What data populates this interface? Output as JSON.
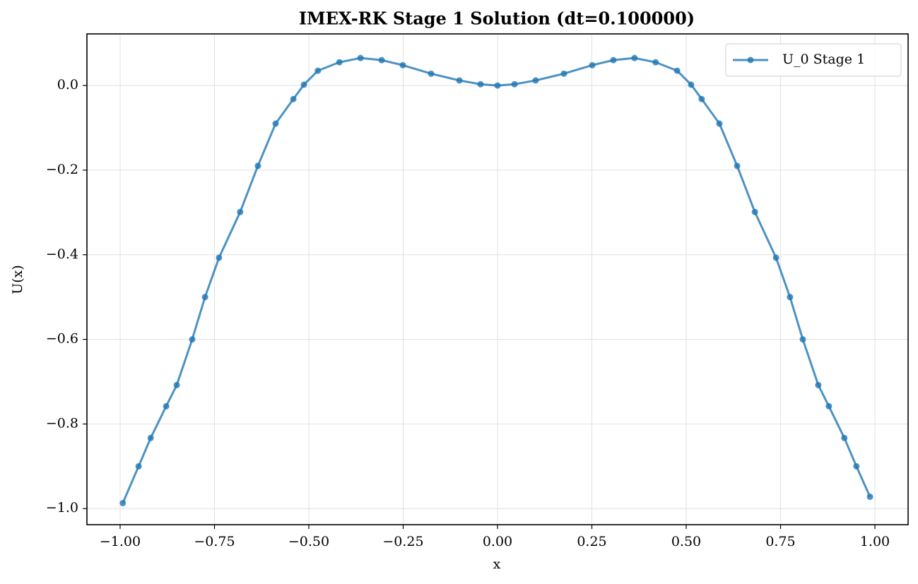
{
  "chart_data": {
    "type": "line",
    "title": "IMEX-RK Stage 1 Solution (dt=0.100000)",
    "xlabel": "x",
    "ylabel": "U(x)",
    "x": [
      -0.993,
      -0.951,
      -0.919,
      -0.878,
      -0.85,
      -0.809,
      -0.775,
      -0.738,
      -0.682,
      -0.635,
      -0.588,
      -0.541,
      -0.513,
      -0.476,
      -0.419,
      -0.363,
      -0.307,
      -0.251,
      -0.176,
      -0.101,
      -0.045,
      0,
      0.045,
      0.101,
      0.176,
      0.251,
      0.307,
      0.363,
      0.419,
      0.476,
      0.513,
      0.541,
      0.588,
      0.635,
      0.682,
      0.738,
      0.775,
      0.809,
      0.85,
      0.878,
      0.919,
      0.951,
      0.987
    ],
    "series": [
      {
        "name": "U_0 Stage 1",
        "color": "#1f77b4",
        "values": [
          -0.987,
          -0.9,
          -0.833,
          -0.758,
          -0.708,
          -0.6,
          -0.5,
          -0.407,
          -0.299,
          -0.19,
          -0.09,
          -0.032,
          0.002,
          0.035,
          0.055,
          0.065,
          0.06,
          0.048,
          0.028,
          0.012,
          0.003,
          0,
          0.003,
          0.012,
          0.028,
          0.048,
          0.06,
          0.065,
          0.055,
          0.035,
          0.002,
          -0.032,
          -0.09,
          -0.19,
          -0.299,
          -0.407,
          -0.5,
          -0.6,
          -0.708,
          -0.758,
          -0.833,
          -0.9,
          -0.972
        ]
      }
    ],
    "xlim": [
      -1.088,
      1.088
    ],
    "ylim": [
      -1.038,
      0.122
    ],
    "xticks": [
      {
        "value": -1,
        "label": "−1.00"
      },
      {
        "value": -0.75,
        "label": "−0.75"
      },
      {
        "value": -0.5,
        "label": "−0.50"
      },
      {
        "value": -0.25,
        "label": "−0.25"
      },
      {
        "value": 0,
        "label": "0.00"
      },
      {
        "value": 0.25,
        "label": "0.25"
      },
      {
        "value": 0.5,
        "label": "0.50"
      },
      {
        "value": 0.75,
        "label": "0.75"
      },
      {
        "value": 1,
        "label": "1.00"
      }
    ],
    "yticks": [
      {
        "value": -1,
        "label": "−1.0"
      },
      {
        "value": -0.8,
        "label": "−0.8"
      },
      {
        "value": -0.6,
        "label": "−0.6"
      },
      {
        "value": -0.4,
        "label": "−0.4"
      },
      {
        "value": -0.2,
        "label": "−0.2"
      },
      {
        "value": 0,
        "label": "0.0"
      }
    ],
    "grid": true,
    "legend": "upper right"
  }
}
